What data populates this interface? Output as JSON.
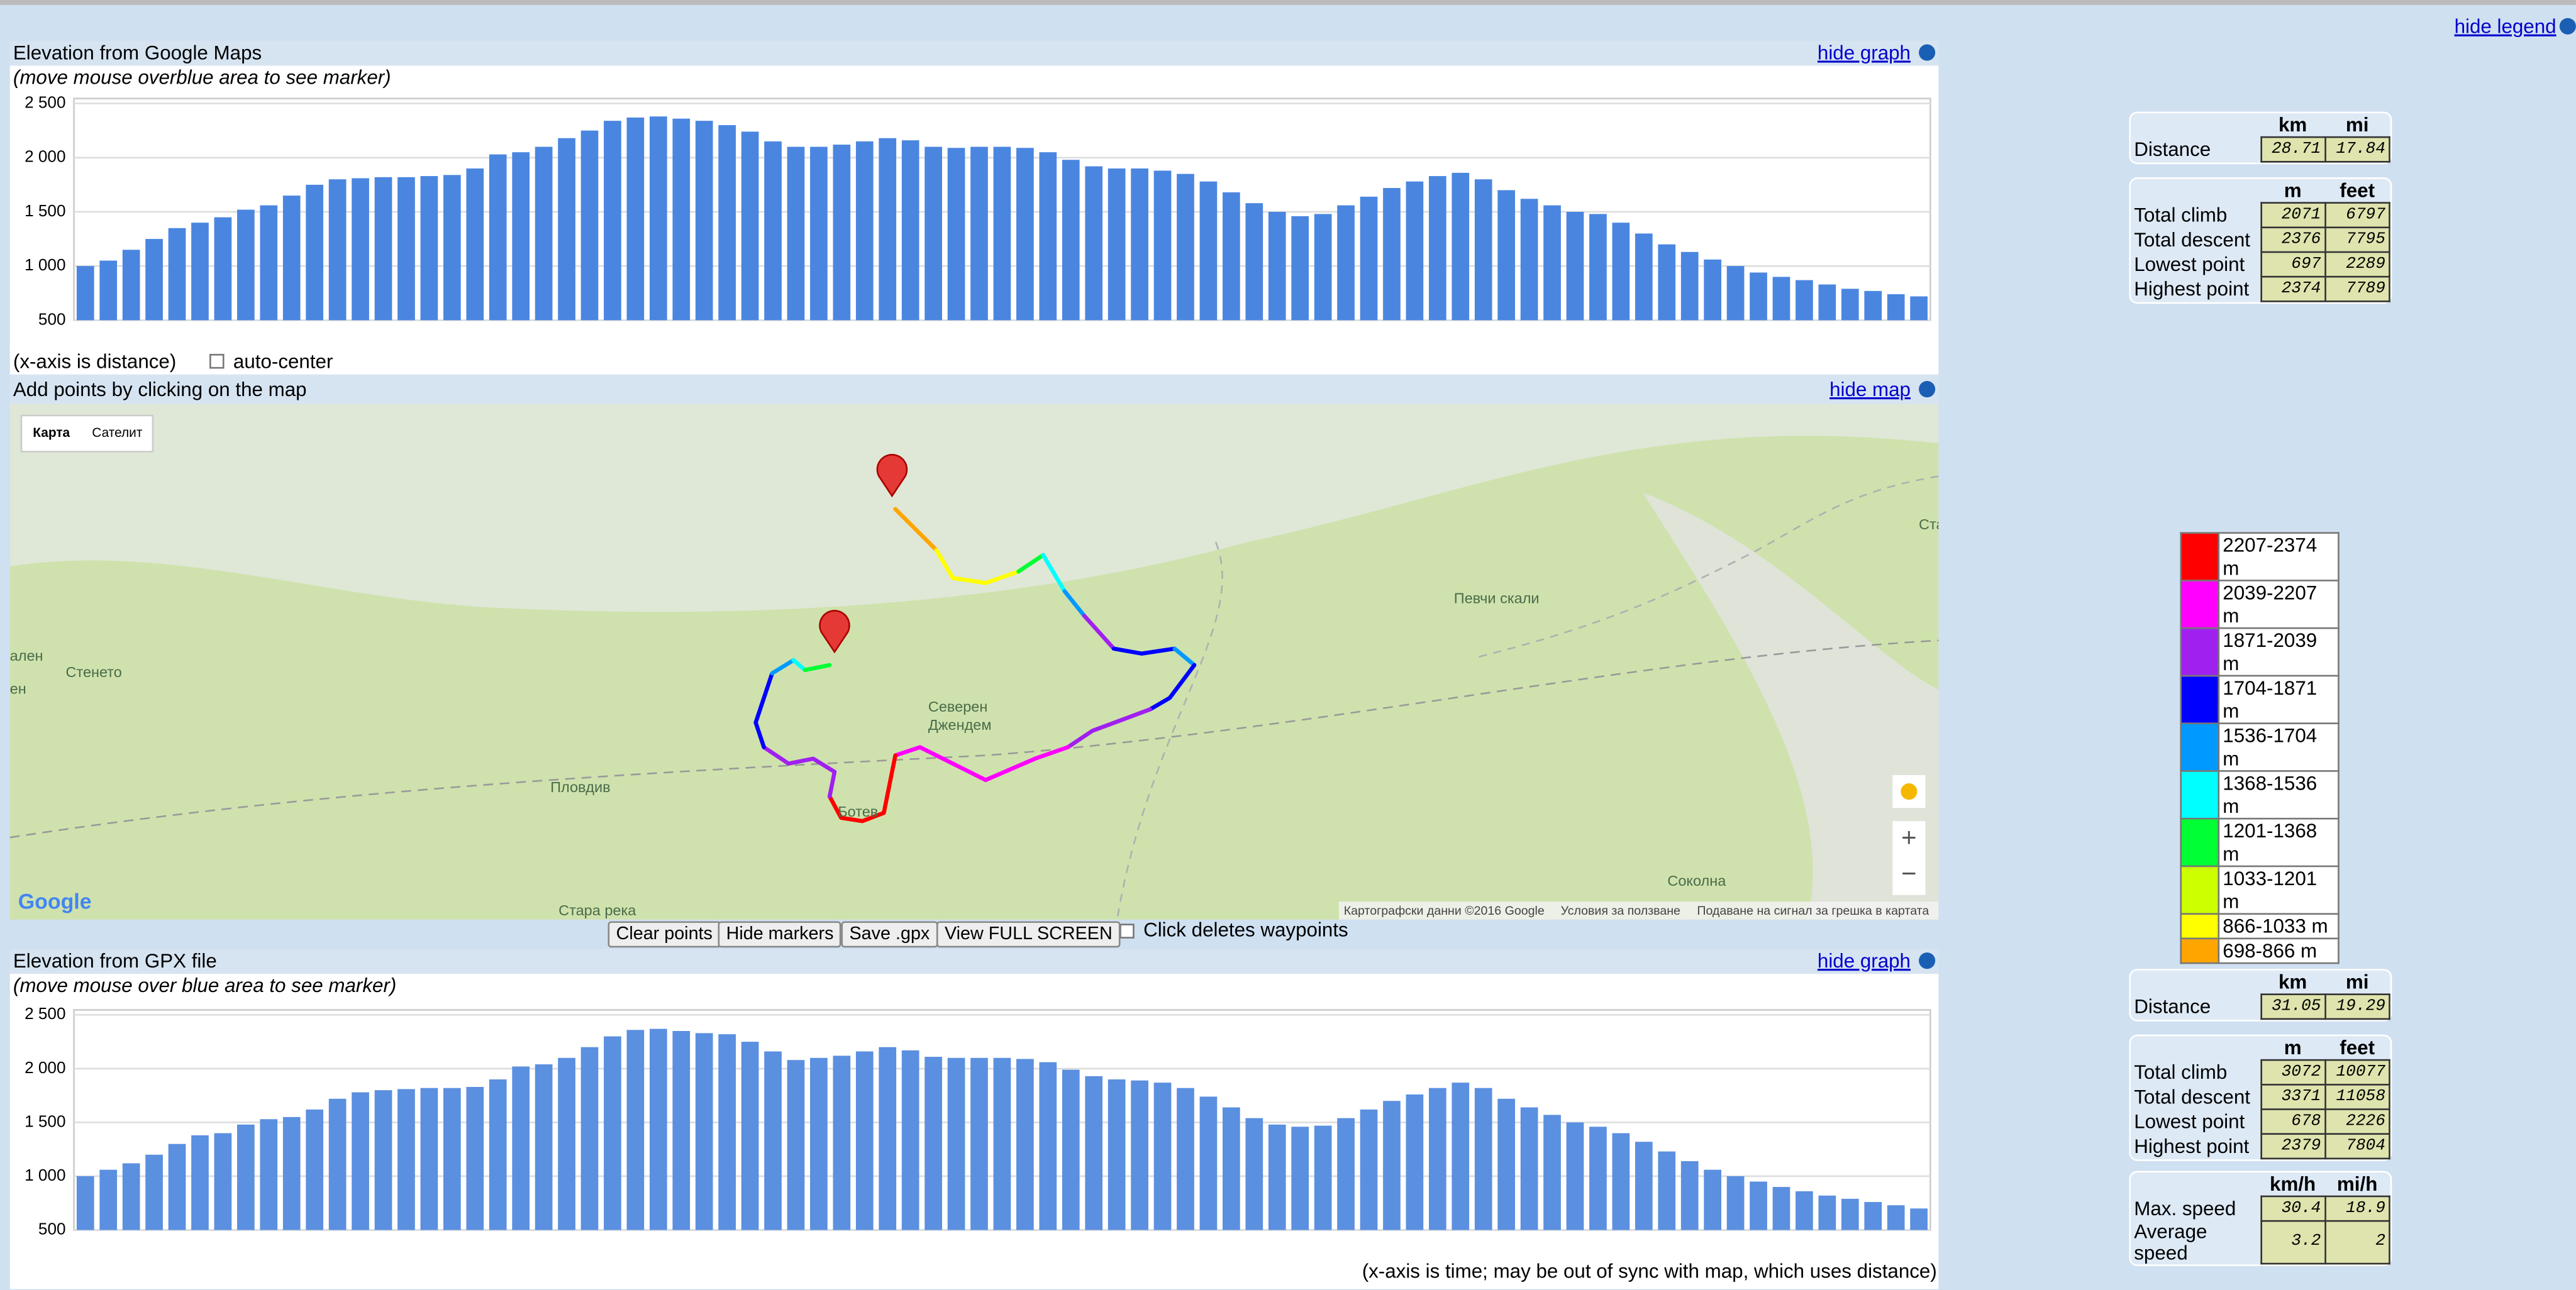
{
  "top": {
    "hide_legend": "hide legend"
  },
  "chart_data": [
    {
      "type": "bar",
      "title": "Elevation from Google Maps",
      "subtitle": "(move mouse overblue area to see marker)",
      "hide_link": "hide graph",
      "color": "#4a86e0",
      "grid": true,
      "ylim": [
        500,
        2500
      ],
      "yticks": [
        500,
        {
          "value": 1000,
          "label": "1 000"
        },
        {
          "value": 1500,
          "label": "1 500"
        },
        {
          "value": 2000,
          "label": "2 000"
        },
        {
          "value": 2500,
          "label": "2 500"
        }
      ],
      "values": [
        1000,
        1050,
        1150,
        1250,
        1350,
        1400,
        1450,
        1520,
        1560,
        1650,
        1750,
        1800,
        1810,
        1820,
        1820,
        1830,
        1840,
        1900,
        2030,
        2050,
        2100,
        2180,
        2250,
        2340,
        2370,
        2380,
        2360,
        2340,
        2300,
        2240,
        2150,
        2100,
        2100,
        2120,
        2150,
        2180,
        2160,
        2100,
        2090,
        2100,
        2100,
        2090,
        2050,
        1980,
        1920,
        1900,
        1900,
        1880,
        1850,
        1780,
        1680,
        1580,
        1500,
        1460,
        1480,
        1560,
        1640,
        1720,
        1780,
        1830,
        1860,
        1800,
        1700,
        1620,
        1560,
        1500,
        1480,
        1400,
        1300,
        1200,
        1130,
        1060,
        1000,
        940,
        900,
        870,
        830,
        790,
        770,
        740,
        720
      ]
    },
    {
      "type": "bar",
      "title": "Elevation from GPX file",
      "subtitle": "(move mouse over blue area to see marker)",
      "hide_link": "hide graph",
      "note": "(x-axis is time; may be out of sync with map, which uses distance)",
      "color": "#5b8fe0",
      "grid": true,
      "ylim": [
        500,
        2500
      ],
      "yticks": [
        500,
        {
          "value": 1000,
          "label": "1 000"
        },
        {
          "value": 1500,
          "label": "1 500"
        },
        {
          "value": 2000,
          "label": "2 000"
        },
        {
          "value": 2500,
          "label": "2 500"
        }
      ],
      "values": [
        1000,
        1060,
        1120,
        1200,
        1300,
        1380,
        1400,
        1480,
        1530,
        1550,
        1620,
        1720,
        1780,
        1800,
        1810,
        1820,
        1820,
        1830,
        1900,
        2020,
        2040,
        2100,
        2200,
        2300,
        2360,
        2370,
        2350,
        2330,
        2320,
        2250,
        2160,
        2080,
        2100,
        2120,
        2160,
        2200,
        2170,
        2110,
        2100,
        2100,
        2100,
        2090,
        2060,
        1990,
        1930,
        1900,
        1890,
        1870,
        1820,
        1740,
        1640,
        1540,
        1480,
        1460,
        1470,
        1540,
        1620,
        1700,
        1760,
        1820,
        1870,
        1820,
        1720,
        1640,
        1570,
        1500,
        1460,
        1400,
        1320,
        1230,
        1140,
        1060,
        1000,
        950,
        900,
        860,
        820,
        790,
        760,
        730,
        700
      ]
    }
  ],
  "graph_footer": {
    "x_note": "(x-axis is distance)",
    "auto_center": "auto-center"
  },
  "map": {
    "title": "Add points by clicking on the map",
    "hide_link": "hide map",
    "map_type": [
      "Карта",
      "Сателит"
    ],
    "labels": [
      "Стенето",
      "Северен",
      "Джендем",
      "Певчи скали",
      "Ботев",
      "Стара река",
      "Соколна",
      "Пловдив",
      "Стара Загора",
      "ален",
      "ен"
    ],
    "google": "Google",
    "attribution": [
      "Картографски данни ©2016 Google",
      "Условия за ползване",
      "Подаване на сигнал за грешка в картата"
    ]
  },
  "buttons": [
    "Clear points",
    "Hide markers",
    "Save .gpx",
    "View FULL SCREEN"
  ],
  "click_deletes": "Click deletes waypoints",
  "stats": [
    [
      {
        "headers": [
          "km",
          "mi"
        ],
        "rows": [
          {
            "label": "Distance",
            "values": [
              "28.71",
              "17.84"
            ]
          }
        ]
      },
      {
        "headers": [
          "m",
          "feet"
        ],
        "rows": [
          {
            "label": "Total climb",
            "values": [
              "2071",
              "6797"
            ]
          },
          {
            "label": "Total descent",
            "values": [
              "2376",
              "7795"
            ]
          },
          {
            "label": "Lowest point",
            "values": [
              "697",
              "2289"
            ]
          },
          {
            "label": "Highest point",
            "values": [
              "2374",
              "7789"
            ]
          }
        ]
      }
    ],
    [
      {
        "headers": [
          "km",
          "mi"
        ],
        "rows": [
          {
            "label": "Distance",
            "values": [
              "31.05",
              "19.29"
            ]
          }
        ]
      },
      {
        "headers": [
          "m",
          "feet"
        ],
        "rows": [
          {
            "label": "Total climb",
            "values": [
              "3072",
              "10077"
            ]
          },
          {
            "label": "Total descent",
            "values": [
              "3371",
              "11058"
            ]
          },
          {
            "label": "Lowest point",
            "values": [
              "678",
              "2226"
            ]
          },
          {
            "label": "Highest point",
            "values": [
              "2379",
              "7804"
            ]
          }
        ]
      },
      {
        "headers": [
          "km/h",
          "mi/h"
        ],
        "rows": [
          {
            "label": "Max. speed",
            "values": [
              "30.4",
              "18.9"
            ]
          },
          {
            "label": "Average speed",
            "values": [
              "3.2",
              "2"
            ]
          }
        ]
      }
    ]
  ],
  "legend": [
    {
      "label": "2207-2374 m",
      "color": "#ff0000"
    },
    {
      "label": "2039-2207 m",
      "color": "#ff00ff"
    },
    {
      "label": "1871-2039 m",
      "color": "#a020f0"
    },
    {
      "label": "1704-1871 m",
      "color": "#0000ff"
    },
    {
      "label": "1536-1704 m",
      "color": "#0099ff"
    },
    {
      "label": "1368-1536 m",
      "color": "#00ffff"
    },
    {
      "label": "1201-1368 m",
      "color": "#00ff33"
    },
    {
      "label": "1033-1201 m",
      "color": "#ccff00"
    },
    {
      "label": "866-1033 m",
      "color": "#ffff00"
    },
    {
      "label": "698-866 m",
      "color": "#ffa500"
    }
  ]
}
